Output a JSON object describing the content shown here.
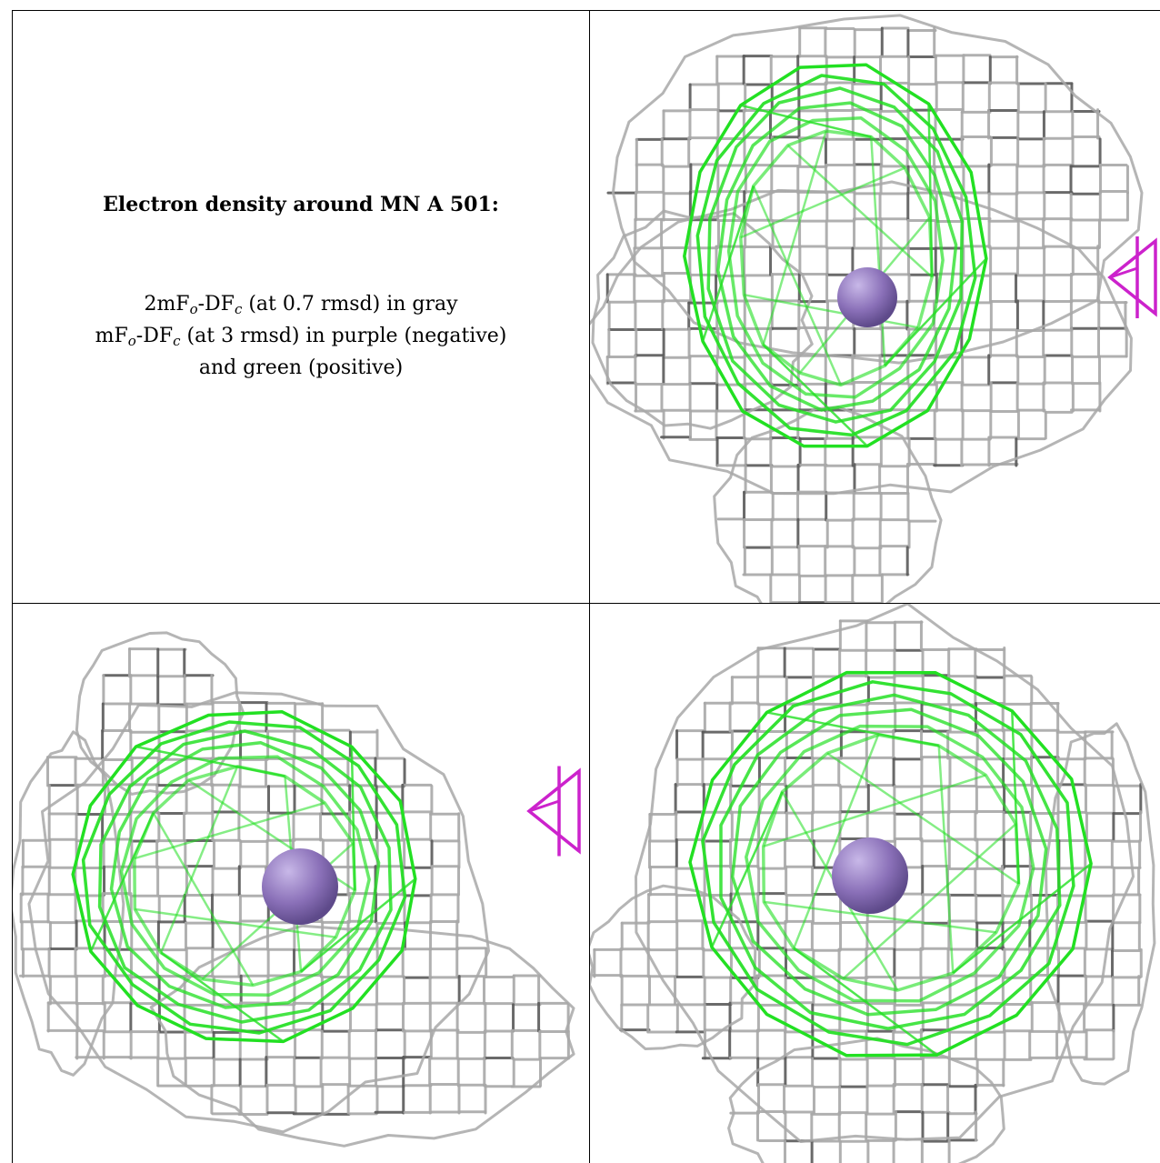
{
  "caption": {
    "title": "Electron density around MN A 501:",
    "line1": {
      "pre": "2mF",
      "sub1": "o",
      "mid": "-DF",
      "sub2": "c",
      "post": " (at 0.7 rmsd) in gray"
    },
    "line2": {
      "pre": "mF",
      "sub1": "o",
      "mid": "-DF",
      "sub2": "c",
      "post": " (at 3 rmsd) in purple (negative)"
    },
    "line3": "and green (positive)"
  },
  "colors": {
    "gray_mesh": "#a8a8a8",
    "dark_mesh": "#5a5a5a",
    "green_mesh": "#22e022",
    "purple_mesh": "#cc22cc",
    "atom": "#8a70b8"
  },
  "panels": [
    {
      "id": "view-top-right",
      "green_rings": 6,
      "purple_fragment": "right-edge"
    },
    {
      "id": "view-bottom-left",
      "green_rings": 6,
      "purple_fragment": "right-edge"
    },
    {
      "id": "view-bottom-right",
      "green_rings": 6,
      "purple_fragment": "none"
    }
  ]
}
